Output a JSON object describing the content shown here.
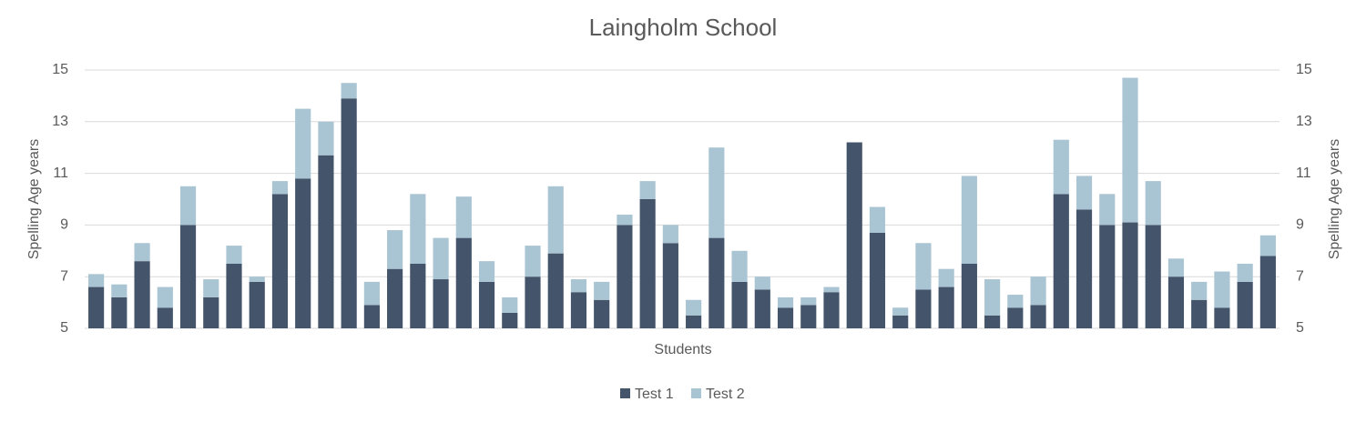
{
  "chart_data": {
    "type": "stacked_bar",
    "title": "Laingholm School",
    "x_label": "Students",
    "y_label": "Spelling Age years",
    "y2_label": "Spelling Age years",
    "categories": [
      null,
      null,
      null,
      null,
      null,
      null,
      null,
      null,
      null,
      null,
      null,
      null,
      null,
      null,
      null,
      null,
      null,
      null,
      null,
      null,
      null,
      null,
      null,
      null,
      null,
      null,
      null,
      null,
      null,
      null,
      null,
      null,
      null,
      null,
      null,
      null,
      null,
      null,
      null,
      null,
      null,
      null,
      null,
      null,
      null,
      null,
      null,
      null,
      null,
      null,
      null,
      null
    ],
    "series": [
      {
        "name": "Test 1",
        "color": "#44546a",
        "values": [
          6.6,
          6.2,
          7.6,
          5.8,
          9.0,
          6.2,
          7.5,
          6.8,
          10.2,
          10.8,
          11.7,
          13.9,
          5.9,
          7.3,
          7.5,
          6.9,
          8.5,
          6.8,
          5.6,
          7.0,
          7.9,
          6.4,
          6.1,
          9.0,
          10.0,
          8.3,
          5.5,
          8.5,
          6.8,
          6.5,
          5.8,
          5.9,
          6.4,
          12.2,
          8.7,
          5.5,
          6.5,
          6.6,
          7.5,
          5.5,
          5.8,
          5.9,
          10.2,
          9.6,
          9.0,
          9.1,
          9.0,
          7.0,
          6.1,
          5.8,
          6.8,
          7.8
        ]
      },
      {
        "name": "Test 2",
        "color": "#a9c4d2",
        "values": [
          0.5,
          0.5,
          0.7,
          0.8,
          1.5,
          0.7,
          0.7,
          0.2,
          0.5,
          2.7,
          1.3,
          0.6,
          0.9,
          1.5,
          2.7,
          1.6,
          1.6,
          0.8,
          0.6,
          1.2,
          2.6,
          0.5,
          0.7,
          0.4,
          0.7,
          0.7,
          0.6,
          3.5,
          1.2,
          0.5,
          0.4,
          0.3,
          0.2,
          0,
          1.0,
          0.3,
          1.8,
          0.7,
          3.4,
          1.4,
          0.5,
          1.1,
          2.1,
          1.3,
          1.2,
          5.6,
          1.7,
          0.7,
          0.7,
          1.4,
          0.7,
          0.8
        ]
      }
    ],
    "ylim": [
      5,
      15
    ],
    "yticks": [
      5,
      7,
      9,
      11,
      13,
      15
    ],
    "y2lim": [
      5,
      15
    ],
    "y2ticks": [
      5,
      7,
      9,
      11,
      13,
      15
    ],
    "grid": true,
    "legend": "bottom"
  }
}
